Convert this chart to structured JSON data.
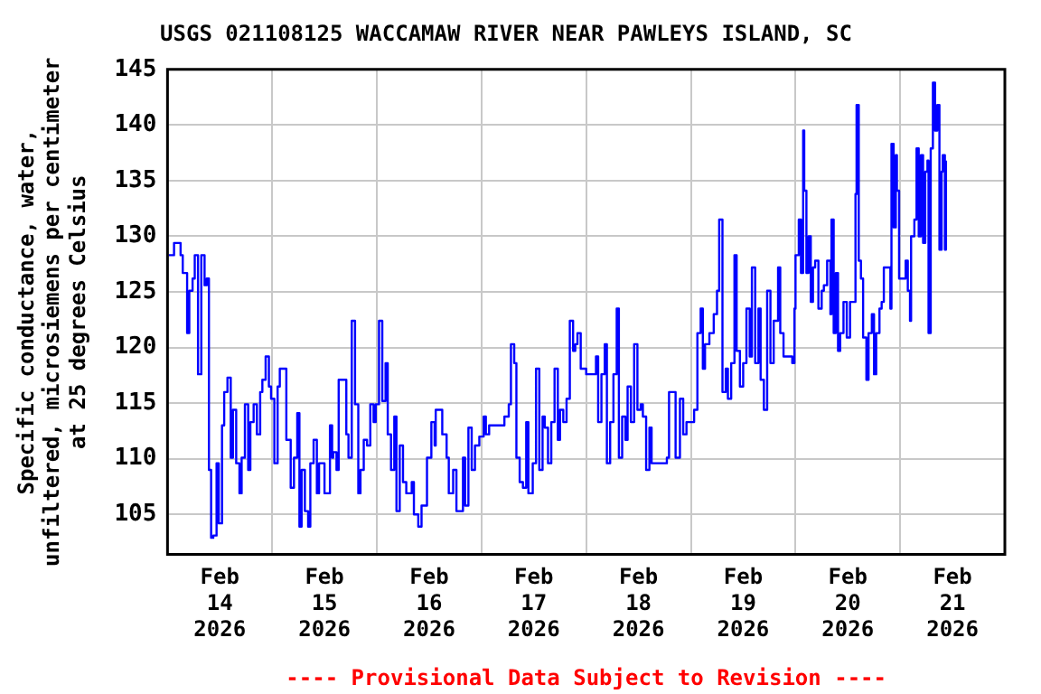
{
  "chart_data": {
    "type": "step",
    "title": "USGS 021108125 WACCAMAW RIVER NEAR PAWLEYS ISLAND, SC",
    "ylabel": "Specific conductance, water,\nunfiltered, microsiemens per centimeter\nat 25 degrees Celsius",
    "annotations": [
      "---- Provisional Data Subject to Revision ----"
    ],
    "xlim": [
      "2026-02-14T00:00",
      "2026-02-22T00:00"
    ],
    "xticks": [
      {
        "value": "2026-02-14T12:00",
        "label": "Feb\n14\n2026"
      },
      {
        "value": "2026-02-15T00:00",
        "label": null
      },
      {
        "value": "2026-02-15T12:00",
        "label": "Feb\n15\n2026"
      },
      {
        "value": "2026-02-16T00:00",
        "label": null
      },
      {
        "value": "2026-02-16T12:00",
        "label": "Feb\n16\n2026"
      },
      {
        "value": "2026-02-17T00:00",
        "label": null
      },
      {
        "value": "2026-02-17T12:00",
        "label": "Feb\n17\n2026"
      },
      {
        "value": "2026-02-18T00:00",
        "label": null
      },
      {
        "value": "2026-02-18T12:00",
        "label": "Feb\n18\n2026"
      },
      {
        "value": "2026-02-19T00:00",
        "label": null
      },
      {
        "value": "2026-02-19T12:00",
        "label": "Feb\n19\n2026"
      },
      {
        "value": "2026-02-20T00:00",
        "label": null
      },
      {
        "value": "2026-02-20T12:00",
        "label": "Feb\n20\n2026"
      },
      {
        "value": "2026-02-21T00:00",
        "label": null
      },
      {
        "value": "2026-02-21T12:00",
        "label": "Feb\n21\n2026"
      }
    ],
    "ylim": [
      101.4,
      145
    ],
    "yticks": [
      105,
      110,
      115,
      120,
      125,
      130,
      135,
      140,
      145
    ],
    "grid": true,
    "legend": false,
    "marker": "none",
    "line_style": "solid",
    "series": [
      {
        "color": "#0000ff",
        "x": [
          "2026-02-14T00:15",
          "2026-02-14T01:30",
          "2026-02-14T03:00",
          "2026-02-14T03:30",
          "2026-02-14T04:30",
          "2026-02-14T05:00",
          "2026-02-14T05:45",
          "2026-02-14T06:15",
          "2026-02-14T07:00",
          "2026-02-14T07:45",
          "2026-02-14T08:30",
          "2026-02-14T09:00",
          "2026-02-14T09:30",
          "2026-02-14T10:00",
          "2026-02-14T10:30",
          "2026-02-14T11:15",
          "2026-02-14T11:45",
          "2026-02-14T12:30",
          "2026-02-14T13:00",
          "2026-02-14T13:45",
          "2026-02-14T14:30",
          "2026-02-14T15:00",
          "2026-02-14T15:45",
          "2026-02-14T16:30",
          "2026-02-14T17:00",
          "2026-02-14T17:45",
          "2026-02-14T18:30",
          "2026-02-14T19:00",
          "2026-02-14T19:45",
          "2026-02-14T20:30",
          "2026-02-14T21:15",
          "2026-02-14T21:45",
          "2026-02-14T22:30",
          "2026-02-14T23:15",
          "2026-02-14T23:45",
          "2026-02-15T00:30",
          "2026-02-15T01:15",
          "2026-02-15T01:45",
          "2026-02-15T02:30",
          "2026-02-15T03:15",
          "2026-02-15T04:15",
          "2026-02-15T05:00",
          "2026-02-15T05:45",
          "2026-02-15T06:15",
          "2026-02-15T06:45",
          "2026-02-15T07:30",
          "2026-02-15T08:15",
          "2026-02-15T08:45",
          "2026-02-15T09:30",
          "2026-02-15T10:15",
          "2026-02-15T10:45",
          "2026-02-15T12:00",
          "2026-02-15T13:15",
          "2026-02-15T13:45",
          "2026-02-15T14:00",
          "2026-02-15T14:45",
          "2026-02-15T15:15",
          "2026-02-15T16:15",
          "2026-02-15T17:00",
          "2026-02-15T17:30",
          "2026-02-15T18:15",
          "2026-02-15T19:00",
          "2026-02-15T19:45",
          "2026-02-15T20:15",
          "2026-02-15T21:00",
          "2026-02-15T21:45",
          "2026-02-15T22:30",
          "2026-02-15T23:15",
          "2026-02-15T23:45",
          "2026-02-16T00:30",
          "2026-02-16T01:15",
          "2026-02-16T02:00",
          "2026-02-16T02:30",
          "2026-02-16T03:15",
          "2026-02-16T04:00",
          "2026-02-16T04:30",
          "2026-02-16T05:15",
          "2026-02-16T06:00",
          "2026-02-16T06:45",
          "2026-02-16T08:00",
          "2026-02-16T08:30",
          "2026-02-16T09:30",
          "2026-02-16T10:15",
          "2026-02-16T11:30",
          "2026-02-16T12:30",
          "2026-02-16T13:15",
          "2026-02-16T13:30",
          "2026-02-16T15:00",
          "2026-02-16T16:00",
          "2026-02-16T16:30",
          "2026-02-16T17:30",
          "2026-02-16T18:15",
          "2026-02-16T19:00",
          "2026-02-16T19:45",
          "2026-02-16T20:15",
          "2026-02-16T21:00",
          "2026-02-16T21:45",
          "2026-02-16T22:30",
          "2026-02-16T23:30",
          "2026-02-17T00:30",
          "2026-02-17T01:00",
          "2026-02-17T01:45",
          "2026-02-17T04:30",
          "2026-02-17T05:15",
          "2026-02-17T06:15",
          "2026-02-17T06:45",
          "2026-02-17T07:30",
          "2026-02-17T08:00",
          "2026-02-17T08:45",
          "2026-02-17T09:30",
          "2026-02-17T10:15",
          "2026-02-17T10:45",
          "2026-02-17T11:45",
          "2026-02-17T12:30",
          "2026-02-17T13:15",
          "2026-02-17T14:00",
          "2026-02-17T14:30",
          "2026-02-17T15:15",
          "2026-02-17T16:00",
          "2026-02-17T16:45",
          "2026-02-17T17:30",
          "2026-02-17T18:00",
          "2026-02-17T18:45",
          "2026-02-17T19:30",
          "2026-02-17T20:15",
          "2026-02-17T21:00",
          "2026-02-17T21:30",
          "2026-02-17T22:00",
          "2026-02-17T22:45",
          "2026-02-17T23:30",
          "2026-02-18T00:00",
          "2026-02-18T01:15",
          "2026-02-18T02:15",
          "2026-02-18T02:45",
          "2026-02-18T03:30",
          "2026-02-18T04:15",
          "2026-02-18T04:45",
          "2026-02-18T05:30",
          "2026-02-18T06:15",
          "2026-02-18T07:00",
          "2026-02-18T07:30",
          "2026-02-18T08:15",
          "2026-02-18T09:00",
          "2026-02-18T09:30",
          "2026-02-18T10:15",
          "2026-02-18T11:00",
          "2026-02-18T11:45",
          "2026-02-18T12:30",
          "2026-02-18T13:00",
          "2026-02-18T13:45",
          "2026-02-18T14:30",
          "2026-02-18T15:00",
          "2026-02-18T16:30",
          "2026-02-18T17:45",
          "2026-02-18T18:30",
          "2026-02-18T19:00",
          "2026-02-18T20:30",
          "2026-02-18T21:30",
          "2026-02-18T22:15",
          "2026-02-18T23:00",
          "2026-02-19T00:00",
          "2026-02-19T00:45",
          "2026-02-19T01:30",
          "2026-02-19T02:15",
          "2026-02-19T02:45",
          "2026-02-19T03:15",
          "2026-02-19T04:15",
          "2026-02-19T05:15",
          "2026-02-19T06:00",
          "2026-02-19T06:30",
          "2026-02-19T07:15",
          "2026-02-19T08:00",
          "2026-02-19T08:30",
          "2026-02-19T09:15",
          "2026-02-19T10:00",
          "2026-02-19T10:30",
          "2026-02-19T11:15",
          "2026-02-19T12:00",
          "2026-02-19T12:45",
          "2026-02-19T13:30",
          "2026-02-19T14:00",
          "2026-02-19T14:45",
          "2026-02-19T15:30",
          "2026-02-19T16:00",
          "2026-02-19T16:45",
          "2026-02-19T17:30",
          "2026-02-19T18:15",
          "2026-02-19T19:00",
          "2026-02-19T20:00",
          "2026-02-19T20:30",
          "2026-02-19T21:15",
          "2026-02-19T22:15",
          "2026-02-19T23:15",
          "2026-02-19T23:45",
          "2026-02-20T00:00",
          "2026-02-20T00:45",
          "2026-02-20T01:15",
          "2026-02-20T01:45",
          "2026-02-20T02:00",
          "2026-02-20T02:30",
          "2026-02-20T03:00",
          "2026-02-20T03:30",
          "2026-02-20T04:00",
          "2026-02-20T04:30",
          "2026-02-20T05:15",
          "2026-02-20T06:00",
          "2026-02-20T06:30",
          "2026-02-20T07:15",
          "2026-02-20T08:00",
          "2026-02-20T08:15",
          "2026-02-20T08:45",
          "2026-02-20T09:15",
          "2026-02-20T09:45",
          "2026-02-20T10:15",
          "2026-02-20T11:00",
          "2026-02-20T11:45",
          "2026-02-20T12:30",
          "2026-02-20T13:00",
          "2026-02-20T13:45",
          "2026-02-20T14:00",
          "2026-02-20T14:30",
          "2026-02-20T15:00",
          "2026-02-20T15:30",
          "2026-02-20T16:15",
          "2026-02-20T16:45",
          "2026-02-20T17:30",
          "2026-02-20T18:00",
          "2026-02-20T18:30",
          "2026-02-20T19:15",
          "2026-02-20T19:45",
          "2026-02-20T20:15",
          "2026-02-20T21:00",
          "2026-02-20T21:45",
          "2026-02-20T22:00",
          "2026-02-20T22:30",
          "2026-02-20T23:00",
          "2026-02-20T23:15",
          "2026-02-20T23:45",
          "2026-02-21T00:30",
          "2026-02-21T01:15",
          "2026-02-21T01:45",
          "2026-02-21T02:15",
          "2026-02-21T02:30",
          "2026-02-21T03:15",
          "2026-02-21T03:45",
          "2026-02-21T04:15",
          "2026-02-21T04:45",
          "2026-02-21T05:15",
          "2026-02-21T05:45",
          "2026-02-21T06:15",
          "2026-02-21T06:30",
          "2026-02-21T07:00",
          "2026-02-21T07:30",
          "2026-02-21T08:00",
          "2026-02-21T08:30",
          "2026-02-21T09:00",
          "2026-02-21T09:30",
          "2026-02-21T09:45",
          "2026-02-21T10:15",
          "2026-02-21T10:30"
        ],
        "values": [
          128.3,
          129.4,
          128.3,
          126.7,
          121.3,
          125.1,
          126.2,
          128.3,
          117.6,
          128.3,
          125.6,
          126.2,
          109,
          102.9,
          103.1,
          109.6,
          104.2,
          113,
          116,
          117.3,
          110.1,
          114.4,
          109.6,
          106.9,
          110.1,
          114.9,
          109,
          113.3,
          114.9,
          112.2,
          116,
          117.1,
          119.2,
          116.5,
          115.4,
          109.6,
          116.5,
          118.1,
          118.1,
          111.7,
          107.4,
          110.1,
          114.1,
          103.9,
          109,
          105.3,
          103.9,
          109.6,
          111.7,
          106.9,
          109.6,
          106.9,
          113,
          110.1,
          110.6,
          109,
          117.1,
          117.1,
          112.2,
          110.1,
          122.4,
          114.9,
          106.9,
          109,
          111.7,
          111.2,
          114.9,
          113.3,
          114.9,
          122.4,
          115.2,
          118.6,
          112.2,
          109,
          113.8,
          105.3,
          111.2,
          107.9,
          106.9,
          107.9,
          105,
          103.9,
          105.8,
          110.1,
          113.3,
          111.2,
          114.4,
          112.2,
          110.1,
          106.9,
          109,
          105.3,
          105.3,
          110.1,
          105.8,
          112.8,
          109,
          111.2,
          112,
          113.8,
          112.2,
          113,
          113,
          113.8,
          114.9,
          120.3,
          118.6,
          110.1,
          107.9,
          107.4,
          113.3,
          106.9,
          109.6,
          118.1,
          109,
          113.8,
          112.8,
          109.6,
          113.3,
          118.1,
          111.7,
          114.4,
          113.3,
          115.4,
          122.4,
          119.7,
          120.3,
          121.3,
          118.1,
          118.1,
          117.6,
          117.6,
          119.2,
          113.3,
          117.6,
          120.3,
          109.6,
          113.3,
          117.6,
          123.5,
          110.1,
          113.8,
          111.7,
          116.5,
          113.3,
          120.3,
          114.4,
          114.9,
          113.8,
          109,
          112.8,
          109.6,
          109.6,
          109.6,
          110.1,
          116,
          110.1,
          115.4,
          112.2,
          113.3,
          113.3,
          114.4,
          121.3,
          123.5,
          118.1,
          120.3,
          121.3,
          123,
          125.1,
          131.5,
          116,
          118.1,
          115.4,
          118.6,
          128.3,
          119.7,
          116.5,
          118.6,
          123.5,
          119.2,
          127.2,
          118.6,
          123.5,
          117.1,
          114.4,
          125.1,
          118.6,
          122.4,
          127.2,
          121.3,
          119.2,
          119.2,
          118.6,
          123.5,
          128.3,
          131.5,
          126.7,
          139.5,
          134.1,
          126.7,
          130,
          124.1,
          127.2,
          127.8,
          123.5,
          125.1,
          125.6,
          127.8,
          123,
          131.5,
          121.3,
          126.7,
          119.7,
          121.3,
          124.1,
          120.9,
          124.1,
          124.1,
          133.8,
          141.8,
          127.8,
          126.2,
          120.9,
          117.1,
          121.3,
          123,
          117.6,
          121.3,
          123.5,
          124.1,
          127.2,
          127.2,
          123.5,
          138.3,
          130.8,
          137.3,
          134.1,
          126.2,
          126.2,
          127.8,
          125.1,
          122.4,
          130,
          131.5,
          137.9,
          130,
          137.3,
          129.4,
          135.8,
          136.8,
          121.3,
          137.9,
          143.8,
          139.5,
          141.8,
          128.8,
          135.8,
          137.3,
          128.8,
          136.8
        ]
      }
    ]
  }
}
